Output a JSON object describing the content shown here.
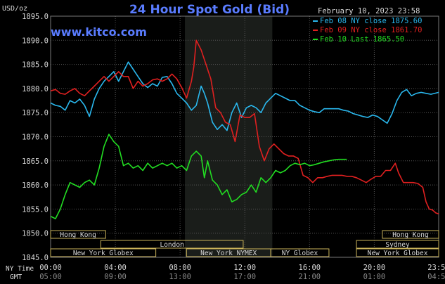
{
  "chart_data": {
    "type": "line",
    "title": "24 Hour Spot Gold (Bid)",
    "website": "www.kitco.com",
    "date_label": "February 10, 2023 23:58",
    "y_unit": "USD/oz",
    "ylim": [
      1845,
      1895
    ],
    "y_ticks": [
      "1895.0",
      "1890.0",
      "1885.0",
      "1880.0",
      "1875.0",
      "1870.0",
      "1865.0",
      "1860.0",
      "1855.0",
      "1850.0",
      "1845.0"
    ],
    "x_ticks_ny": [
      "00:00",
      "04:00",
      "08:00",
      "12:00",
      "16:00",
      "20:00",
      "23:59"
    ],
    "x_ticks_gmt": [
      "05:00",
      "09:00",
      "13:00",
      "17:00",
      "21:00",
      "01:00",
      "04:59"
    ],
    "x_hours": [
      0,
      4,
      8,
      12,
      16,
      20,
      23.98
    ],
    "ny_time_label": "NY Time",
    "gmt_label": "GMT",
    "shaded_hours": [
      8.3,
      13.7
    ],
    "grid": true,
    "legend_position": "top-right",
    "colors": {
      "background": "#000000",
      "title": "#5a7cff",
      "website": "#5a7cff",
      "label": "#d8d8d8",
      "grid": "#555555",
      "shade": "#1a1d1a"
    },
    "series": [
      {
        "name": "Feb 08 NY close 1875.60",
        "color": "#2ab8ee",
        "points": [
          [
            0,
            1877
          ],
          [
            0.3,
            1876.5
          ],
          [
            0.6,
            1876.3
          ],
          [
            0.9,
            1875.5
          ],
          [
            1.2,
            1877.5
          ],
          [
            1.5,
            1877
          ],
          [
            1.8,
            1877.8
          ],
          [
            2.1,
            1876.5
          ],
          [
            2.4,
            1874.2
          ],
          [
            2.7,
            1877.8
          ],
          [
            3.0,
            1880
          ],
          [
            3.3,
            1881.5
          ],
          [
            3.6,
            1882.5
          ],
          [
            3.9,
            1883.5
          ],
          [
            4.2,
            1881.5
          ],
          [
            4.5,
            1883.5
          ],
          [
            4.8,
            1885.5
          ],
          [
            5.1,
            1884
          ],
          [
            5.4,
            1882.5
          ],
          [
            5.7,
            1881
          ],
          [
            6.0,
            1880.2
          ],
          [
            6.3,
            1881
          ],
          [
            6.6,
            1880.5
          ],
          [
            6.9,
            1882.3
          ],
          [
            7.2,
            1882.5
          ],
          [
            7.5,
            1881
          ],
          [
            7.8,
            1879
          ],
          [
            8.1,
            1878
          ],
          [
            8.4,
            1877
          ],
          [
            8.7,
            1875.5
          ],
          [
            9.0,
            1876.5
          ],
          [
            9.3,
            1880.5
          ],
          [
            9.5,
            1879
          ],
          [
            9.7,
            1877
          ],
          [
            10.0,
            1873
          ],
          [
            10.3,
            1871.5
          ],
          [
            10.6,
            1872.5
          ],
          [
            10.9,
            1871.3
          ],
          [
            11.2,
            1875
          ],
          [
            11.5,
            1877
          ],
          [
            11.8,
            1874
          ],
          [
            12.1,
            1876
          ],
          [
            12.4,
            1876.5
          ],
          [
            12.7,
            1876
          ],
          [
            13.0,
            1875
          ],
          [
            13.3,
            1877
          ],
          [
            13.6,
            1878
          ],
          [
            13.9,
            1879
          ],
          [
            14.2,
            1878.5
          ],
          [
            14.5,
            1878
          ],
          [
            14.8,
            1877.5
          ],
          [
            15.1,
            1877.5
          ],
          [
            15.4,
            1876.5
          ],
          [
            15.7,
            1876
          ],
          [
            16.0,
            1875.5
          ],
          [
            16.3,
            1875.2
          ],
          [
            16.6,
            1875
          ],
          [
            16.9,
            1875.8
          ],
          [
            17.2,
            1875.8
          ],
          [
            17.5,
            1875.8
          ],
          [
            17.8,
            1875.8
          ],
          [
            18.1,
            1875.5
          ],
          [
            18.4,
            1875.3
          ],
          [
            18.7,
            1874.8
          ],
          [
            19.0,
            1874.5
          ],
          [
            19.3,
            1874.2
          ],
          [
            19.6,
            1874
          ],
          [
            19.9,
            1874.5
          ],
          [
            20.2,
            1874.2
          ],
          [
            20.5,
            1873.5
          ],
          [
            20.8,
            1872.8
          ],
          [
            21.1,
            1874.8
          ],
          [
            21.4,
            1877.5
          ],
          [
            21.7,
            1879.2
          ],
          [
            22.0,
            1879.8
          ],
          [
            22.3,
            1878.5
          ],
          [
            22.6,
            1879
          ],
          [
            22.9,
            1879.2
          ],
          [
            23.2,
            1879
          ],
          [
            23.5,
            1878.8
          ],
          [
            23.98,
            1879.2
          ]
        ]
      },
      {
        "name": "Feb 09 NY close 1861.70",
        "color": "#e02020",
        "points": [
          [
            0,
            1879.5
          ],
          [
            0.3,
            1879.8
          ],
          [
            0.6,
            1879
          ],
          [
            0.9,
            1878.8
          ],
          [
            1.2,
            1879.5
          ],
          [
            1.5,
            1880
          ],
          [
            1.8,
            1879
          ],
          [
            2.1,
            1878.5
          ],
          [
            2.4,
            1879.5
          ],
          [
            2.7,
            1880.5
          ],
          [
            3.0,
            1881.5
          ],
          [
            3.3,
            1882.5
          ],
          [
            3.6,
            1881.5
          ],
          [
            3.9,
            1882.5
          ],
          [
            4.2,
            1883.5
          ],
          [
            4.5,
            1882.5
          ],
          [
            4.8,
            1882.5
          ],
          [
            5.1,
            1880
          ],
          [
            5.4,
            1881.5
          ],
          [
            5.7,
            1880.5
          ],
          [
            6.0,
            1881
          ],
          [
            6.3,
            1881.8
          ],
          [
            6.6,
            1882
          ],
          [
            6.9,
            1881.5
          ],
          [
            7.2,
            1882
          ],
          [
            7.5,
            1883
          ],
          [
            7.8,
            1882
          ],
          [
            8.1,
            1880.2
          ],
          [
            8.4,
            1878
          ],
          [
            8.7,
            1881.5
          ],
          [
            8.85,
            1884.5
          ],
          [
            9.0,
            1890
          ],
          [
            9.3,
            1888
          ],
          [
            9.6,
            1885
          ],
          [
            9.9,
            1882
          ],
          [
            10.2,
            1876
          ],
          [
            10.5,
            1875
          ],
          [
            10.8,
            1873
          ],
          [
            11.1,
            1872.5
          ],
          [
            11.4,
            1869
          ],
          [
            11.7,
            1874.5
          ],
          [
            12.0,
            1874
          ],
          [
            12.3,
            1874
          ],
          [
            12.6,
            1874.8
          ],
          [
            12.9,
            1868
          ],
          [
            13.2,
            1865
          ],
          [
            13.5,
            1867.5
          ],
          [
            13.8,
            1868.5
          ],
          [
            14.1,
            1867.5
          ],
          [
            14.4,
            1866.5
          ],
          [
            14.7,
            1866
          ],
          [
            15.0,
            1866
          ],
          [
            15.3,
            1865.5
          ],
          [
            15.6,
            1862
          ],
          [
            15.9,
            1861.5
          ],
          [
            16.2,
            1860.5
          ],
          [
            16.5,
            1861.5
          ],
          [
            16.8,
            1861.5
          ],
          [
            17.1,
            1861.8
          ],
          [
            17.4,
            1862
          ],
          [
            17.7,
            1862
          ],
          [
            18.0,
            1862
          ],
          [
            18.3,
            1861.8
          ],
          [
            18.6,
            1861.8
          ],
          [
            18.9,
            1861.5
          ],
          [
            19.2,
            1861
          ],
          [
            19.5,
            1860.5
          ],
          [
            19.8,
            1861.2
          ],
          [
            20.1,
            1861.8
          ],
          [
            20.4,
            1861.8
          ],
          [
            20.7,
            1863
          ],
          [
            21.0,
            1863
          ],
          [
            21.3,
            1864.5
          ],
          [
            21.5,
            1862.5
          ],
          [
            21.8,
            1860.5
          ],
          [
            22.1,
            1860.5
          ],
          [
            22.4,
            1860.5
          ],
          [
            22.7,
            1860.3
          ],
          [
            23.0,
            1859.5
          ],
          [
            23.2,
            1856.5
          ],
          [
            23.4,
            1855
          ],
          [
            23.6,
            1854.8
          ],
          [
            23.8,
            1854.2
          ],
          [
            23.98,
            1854
          ]
        ]
      },
      {
        "name": "Feb 10 Last 1865.50",
        "color": "#22dd22",
        "points": [
          [
            0,
            1853.5
          ],
          [
            0.3,
            1853
          ],
          [
            0.6,
            1855
          ],
          [
            0.9,
            1858
          ],
          [
            1.2,
            1860.5
          ],
          [
            1.5,
            1860
          ],
          [
            1.8,
            1859.5
          ],
          [
            2.1,
            1860.5
          ],
          [
            2.4,
            1861
          ],
          [
            2.7,
            1860
          ],
          [
            3.0,
            1863.5
          ],
          [
            3.3,
            1868
          ],
          [
            3.6,
            1870.5
          ],
          [
            3.9,
            1869
          ],
          [
            4.2,
            1868
          ],
          [
            4.5,
            1864
          ],
          [
            4.8,
            1864.5
          ],
          [
            5.1,
            1863.5
          ],
          [
            5.4,
            1864
          ],
          [
            5.7,
            1863
          ],
          [
            6.0,
            1864.5
          ],
          [
            6.3,
            1863.5
          ],
          [
            6.6,
            1864
          ],
          [
            6.9,
            1864.5
          ],
          [
            7.2,
            1864
          ],
          [
            7.5,
            1864.5
          ],
          [
            7.8,
            1863.5
          ],
          [
            8.1,
            1864
          ],
          [
            8.4,
            1863
          ],
          [
            8.7,
            1866
          ],
          [
            9.0,
            1867
          ],
          [
            9.3,
            1866
          ],
          [
            9.5,
            1861.5
          ],
          [
            9.7,
            1865
          ],
          [
            10.0,
            1861
          ],
          [
            10.3,
            1860
          ],
          [
            10.6,
            1858
          ],
          [
            10.9,
            1859
          ],
          [
            11.2,
            1856.5
          ],
          [
            11.5,
            1857
          ],
          [
            11.8,
            1858
          ],
          [
            12.1,
            1858.5
          ],
          [
            12.4,
            1860
          ],
          [
            12.7,
            1858.5
          ],
          [
            13.0,
            1861.5
          ],
          [
            13.3,
            1860.5
          ],
          [
            13.6,
            1861.5
          ],
          [
            13.9,
            1863
          ],
          [
            14.2,
            1862.5
          ],
          [
            14.5,
            1863
          ],
          [
            14.8,
            1864
          ],
          [
            15.1,
            1864.5
          ],
          [
            15.4,
            1864.2
          ],
          [
            15.7,
            1864.5
          ],
          [
            16.0,
            1864
          ],
          [
            16.3,
            1864.2
          ],
          [
            16.6,
            1864.5
          ],
          [
            16.9,
            1864.8
          ],
          [
            17.2,
            1865
          ],
          [
            17.5,
            1865.2
          ],
          [
            17.8,
            1865.3
          ],
          [
            18.1,
            1865.3
          ],
          [
            18.3,
            1865.3
          ]
        ]
      }
    ],
    "markets": [
      {
        "name": "Hong Kong",
        "start": 0,
        "end": 3.4,
        "row": 0
      },
      {
        "name": "Hong Kong",
        "start": 20.5,
        "end": 23.98,
        "row": 0
      },
      {
        "name": "London",
        "start": 3.1,
        "end": 11.9,
        "row": 1
      },
      {
        "name": "Sydney",
        "start": 18.9,
        "end": 23.98,
        "row": 1
      },
      {
        "name": "New York Globex",
        "start": 0,
        "end": 6.5,
        "row": 2
      },
      {
        "name": "New York NYMEX",
        "start": 8.4,
        "end": 13.6,
        "row": 2
      },
      {
        "name": "NY Globex",
        "start": 13.6,
        "end": 17.2,
        "row": 2
      },
      {
        "name": "New York Globex",
        "start": 18.9,
        "end": 23.98,
        "row": 2
      }
    ]
  }
}
